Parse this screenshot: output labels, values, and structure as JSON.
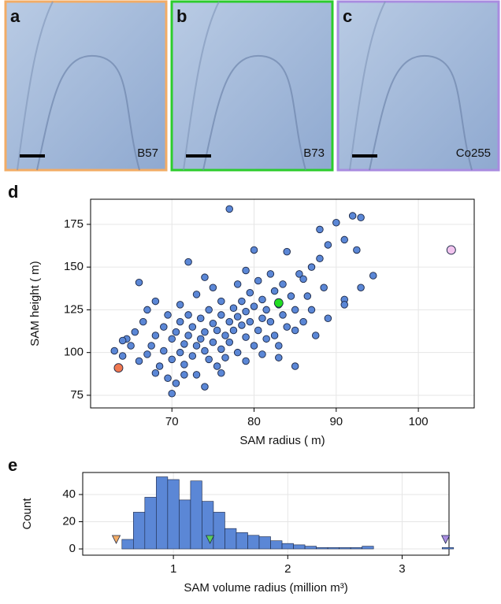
{
  "images": [
    {
      "label": "a",
      "name": "B57",
      "color": "#f2ac66"
    },
    {
      "label": "b",
      "name": "B73",
      "color": "#2ccc2c"
    },
    {
      "label": "c",
      "name": "Co255",
      "color": "#a98ce0"
    }
  ],
  "chart_data": [
    {
      "type": "scatter",
      "label": "d",
      "x_label": "SAM radius ( m)",
      "y_label": "SAM height ( m)",
      "xlim": [
        60.1,
        106.8
      ],
      "xticks": [
        70,
        80,
        90,
        100
      ],
      "ylim": [
        67.6,
        189.7
      ],
      "yticks": [
        75,
        100,
        125,
        150,
        175
      ],
      "grid": true,
      "series": [
        {
          "color": "#5b87d6",
          "x": [
            63,
            64,
            64.5,
            65,
            65.5,
            66,
            66.5,
            67,
            67,
            67.5,
            68,
            68,
            68.5,
            69,
            69,
            69.5,
            69.5,
            70,
            70,
            70,
            70.5,
            70.5,
            71,
            71,
            71,
            71.5,
            71.5,
            72,
            72,
            72,
            72.5,
            72.5,
            73,
            73,
            73,
            73.5,
            73.5,
            74,
            74,
            74,
            74.5,
            74.5,
            75,
            75,
            75,
            75.5,
            75.5,
            76,
            76,
            76,
            76.5,
            76.5,
            77,
            77,
            77,
            77.5,
            77.5,
            78,
            78,
            78,
            78.5,
            78.5,
            79,
            79,
            79,
            79.5,
            79.5,
            80,
            80,
            80,
            80.5,
            80.5,
            81,
            81,
            81.5,
            81.5,
            82,
            82,
            82.5,
            82.5,
            83,
            83,
            83.5,
            83.5,
            84,
            84,
            84.5,
            85,
            85,
            85,
            85.5,
            86,
            86,
            86.5,
            87,
            87,
            87.5,
            88,
            88,
            88.5,
            89,
            89,
            90,
            91,
            91,
            91,
            92,
            92.5,
            93,
            93,
            94.5,
            66,
            64,
            68,
            71.5,
            74,
            76,
            79,
            81,
            83
          ],
          "values": [
            101,
            98,
            108,
            104,
            112,
            95,
            118,
            99,
            125,
            104,
            88,
            110,
            92,
            101,
            115,
            122,
            85,
            96,
            108,
            76,
            112,
            82,
            100,
            118,
            128,
            105,
            93,
            110,
            153,
            122,
            98,
            115,
            104,
            134,
            87,
            108,
            120,
            80,
            112,
            101,
            125,
            96,
            117,
            106,
            138,
            113,
            92,
            122,
            102,
            130,
            110,
            97,
            184,
            118,
            106,
            126,
            113,
            140,
            121,
            100,
            116,
            130,
            109,
            124,
            95,
            135,
            118,
            127,
            104,
            160,
            113,
            142,
            120,
            131,
            108,
            125,
            146,
            118,
            136,
            110,
            128,
            97,
            140,
            122,
            159,
            115,
            133,
            113,
            92,
            125,
            146,
            143,
            118,
            133,
            150,
            125,
            110,
            172,
            155,
            138,
            163,
            120,
            176,
            166,
            131,
            128,
            180,
            160,
            179,
            138,
            145,
            141,
            107,
            130,
            87,
            144,
            88,
            148,
            99,
            104
          ]
        },
        {
          "color": "#f07850",
          "x": [
            63.5
          ],
          "values": [
            91
          ]
        },
        {
          "color": "#22dd22",
          "x": [
            83
          ],
          "values": [
            129
          ]
        },
        {
          "color": "#f2c4ee",
          "x": [
            104
          ],
          "values": [
            160
          ]
        }
      ]
    },
    {
      "type": "histogram",
      "label": "e",
      "x_label": "SAM volume radius (million  m³)",
      "y_label": "Count",
      "xlim": [
        0.207,
        3.41
      ],
      "xticks": [
        1,
        2,
        3
      ],
      "ylim": [
        -4.6,
        56.2
      ],
      "yticks": [
        0,
        20,
        40
      ],
      "grid": true,
      "color": "#5b87d6",
      "bins": [
        0.55,
        0.65,
        0.75,
        0.85,
        0.95,
        1.05,
        1.15,
        1.25,
        1.35,
        1.45,
        1.55,
        1.65,
        1.75,
        1.85,
        1.95,
        2.05,
        2.15,
        2.25,
        2.35,
        2.45,
        2.55,
        2.65,
        2.75,
        2.85,
        2.95,
        3.05,
        3.15,
        3.25,
        3.35,
        3.45
      ],
      "values": [
        7,
        27,
        38,
        53,
        51,
        36,
        50,
        35,
        27,
        15,
        12,
        10,
        9,
        6,
        4,
        3,
        2,
        1,
        1,
        1,
        1,
        2,
        0,
        0,
        0,
        0,
        0,
        0,
        1
      ],
      "markers": [
        {
          "color": "#f2ac66",
          "x": 0.5
        },
        {
          "color": "#5ccc5c",
          "x": 1.32
        },
        {
          "color": "#a98ce0",
          "x": 3.38
        }
      ]
    }
  ]
}
